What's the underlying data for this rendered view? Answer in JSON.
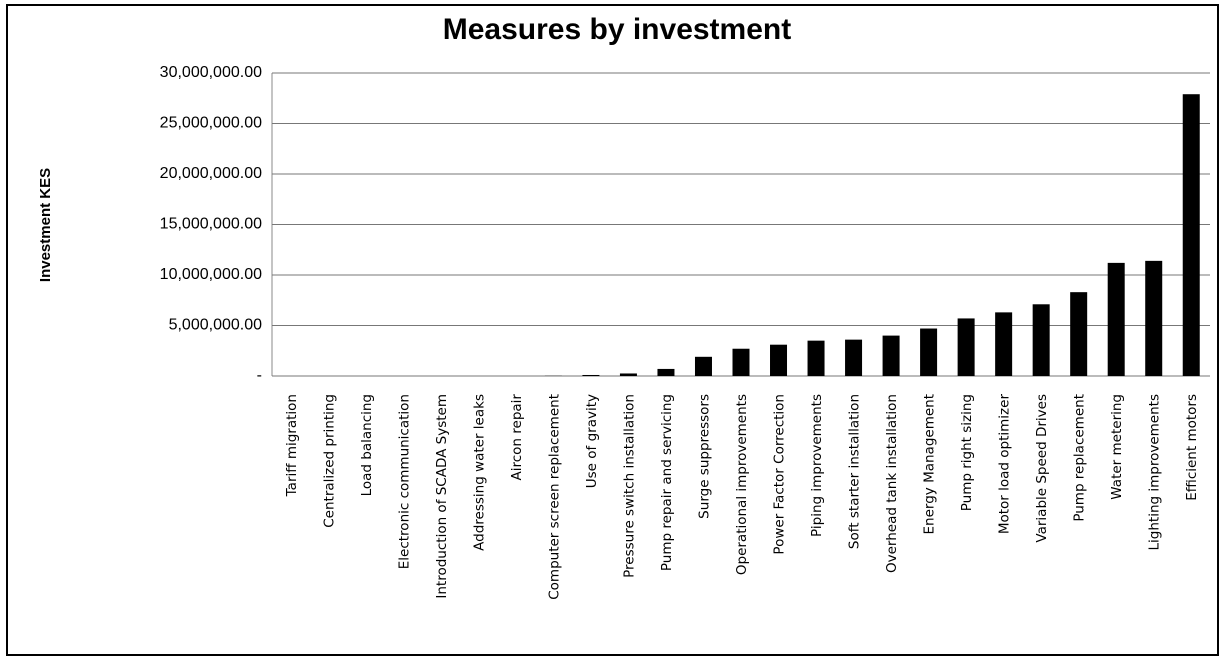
{
  "chart_data": {
    "type": "bar",
    "title": "Measures by investment",
    "y_label": "Investment KES",
    "categories": [
      "Tariff migration",
      "Centralized printing",
      "Load balancing",
      "Electronic communication",
      "Introduction of SCADA System",
      "Addressing water leaks",
      "Aircon repair",
      "Computer screen replacement",
      "Use of gravity",
      "Pressure switch installation",
      "Pump repair and servicing",
      "Surge suppressors",
      "Operational improvements",
      "Power Factor Correction",
      "Piping improvements",
      "Soft starter installation",
      "Overhead tank installation",
      "Energy Management",
      "Pump right sizing",
      "Motor load optimizer",
      "Variable Speed Drives",
      "Pump replacement",
      "Water metering",
      "Lighting improvements",
      "Efficient motors"
    ],
    "values": [
      0,
      0,
      0,
      0,
      0,
      0,
      0,
      20000,
      100000,
      250000,
      700000,
      1900000,
      2700000,
      3100000,
      3500000,
      3600000,
      4000000,
      4700000,
      5700000,
      6300000,
      7100000,
      8300000,
      11200000,
      11400000,
      27900000
    ],
    "color": "#000000",
    "ylim": [
      0,
      30000000
    ],
    "yticks": [
      {
        "value": 0,
        "label": "-"
      },
      {
        "value": 5000000,
        "label": "5,000,000.00"
      },
      {
        "value": 10000000,
        "label": "10,000,000.00"
      },
      {
        "value": 15000000,
        "label": "15,000,000.00"
      },
      {
        "value": 20000000,
        "label": "20,000,000.00"
      },
      {
        "value": 25000000,
        "label": "25,000,000.00"
      },
      {
        "value": 30000000,
        "label": "30,000,000.00"
      }
    ],
    "grid": true
  }
}
